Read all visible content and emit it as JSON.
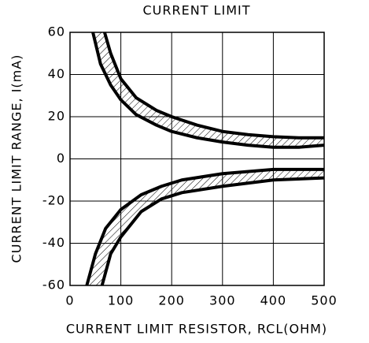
{
  "chart_data": {
    "type": "line",
    "title": "CURRENT LIMIT",
    "x_label": "CURRENT LIMIT RESISTOR, RCL(OHM)",
    "y_label": "CURRENT LIMIT RANGE, I(mA)",
    "xlim": [
      0,
      500
    ],
    "xticks": [
      0,
      100,
      200,
      300,
      400,
      500
    ],
    "ylim": [
      -60,
      60
    ],
    "yticks": [
      -60,
      -40,
      -20,
      0,
      20,
      40,
      60
    ],
    "grid": true,
    "series": [
      {
        "color": "#000000",
        "x": [
          68,
          80,
          100,
          130,
          170,
          200,
          250,
          300,
          350,
          400,
          450,
          500
        ],
        "values": [
          60,
          50,
          38,
          29,
          23,
          20,
          16,
          13,
          11.5,
          10.5,
          10,
          10
        ]
      },
      {
        "color": "#000000",
        "x": [
          45,
          60,
          80,
          100,
          130,
          170,
          200,
          250,
          300,
          350,
          400,
          450,
          500
        ],
        "values": [
          60,
          45,
          35,
          28,
          21,
          16,
          13,
          10,
          8,
          6.5,
          5.5,
          5.5,
          6.5
        ]
      },
      {
        "color": "#000000",
        "x": [
          33,
          50,
          70,
          100,
          140,
          180,
          220,
          300,
          400,
          500
        ],
        "values": [
          -60,
          -45,
          -33,
          -24,
          -17,
          -13,
          -10,
          -7,
          -5,
          -5
        ]
      },
      {
        "color": "#000000",
        "x": [
          63,
          80,
          100,
          140,
          180,
          220,
          300,
          400,
          500
        ],
        "values": [
          -60,
          -45,
          -37,
          -25,
          -19,
          -16,
          -13,
          -10,
          -9
        ]
      }
    ],
    "bands": [
      [
        0,
        1
      ],
      [
        2,
        3
      ]
    ]
  }
}
